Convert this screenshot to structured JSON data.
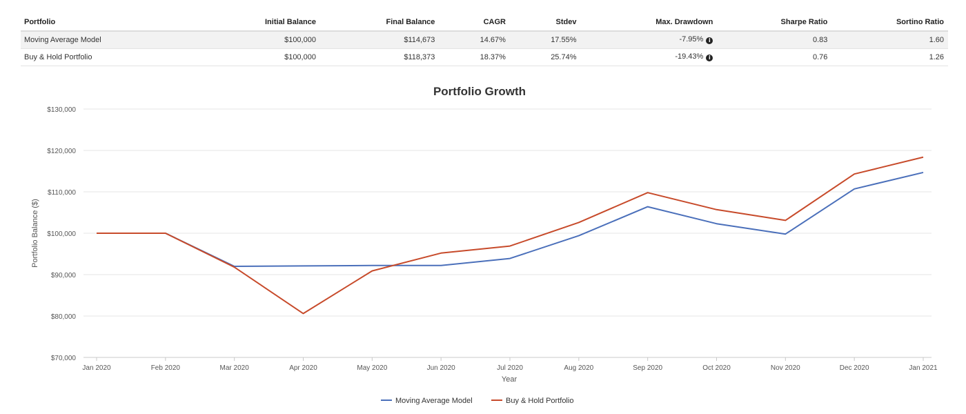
{
  "table": {
    "headers": [
      "Portfolio",
      "Initial Balance",
      "Final Balance",
      "CAGR",
      "Stdev",
      "Max. Drawdown",
      "Sharpe Ratio",
      "Sortino Ratio"
    ],
    "rows": [
      {
        "portfolio": "Moving Average Model",
        "initial": "$100,000",
        "final": "$114,673",
        "cagr": "14.67%",
        "stdev": "17.55%",
        "drawdown": "-7.95%",
        "sharpe": "0.83",
        "sortino": "1.60"
      },
      {
        "portfolio": "Buy & Hold Portfolio",
        "initial": "$100,000",
        "final": "$118,373",
        "cagr": "18.37%",
        "stdev": "25.74%",
        "drawdown": "-19.43%",
        "sharpe": "0.76",
        "sortino": "1.26"
      }
    ],
    "info_glyph": "i"
  },
  "chart_data": {
    "type": "line",
    "title": "Portfolio Growth",
    "xlabel": "Year",
    "ylabel": "Portfolio Balance ($)",
    "categories": [
      "Jan 2020",
      "Feb 2020",
      "Mar 2020",
      "Apr 2020",
      "May 2020",
      "Jun 2020",
      "Jul 2020",
      "Aug 2020",
      "Sep 2020",
      "Oct 2020",
      "Nov 2020",
      "Dec 2020",
      "Jan 2021"
    ],
    "ylim": [
      70000,
      130000
    ],
    "yticks": [
      70000,
      80000,
      90000,
      100000,
      110000,
      120000,
      130000
    ],
    "ytick_labels": [
      "$70,000",
      "$80,000",
      "$90,000",
      "$100,000",
      "$110,000",
      "$120,000",
      "$130,000"
    ],
    "grid": true,
    "legend_position": "bottom-center",
    "series": [
      {
        "name": "Moving Average Model",
        "color": "#4a6fba",
        "values": [
          100000,
          100000,
          92000,
          92100,
          92200,
          92200,
          93900,
          99400,
          106400,
          102300,
          99800,
          110700,
          114673
        ]
      },
      {
        "name": "Buy & Hold Portfolio",
        "color": "#c74a2a",
        "values": [
          100000,
          100000,
          91800,
          80600,
          90900,
          95200,
          96900,
          102600,
          109800,
          105700,
          103100,
          114300,
          118373
        ]
      }
    ]
  }
}
